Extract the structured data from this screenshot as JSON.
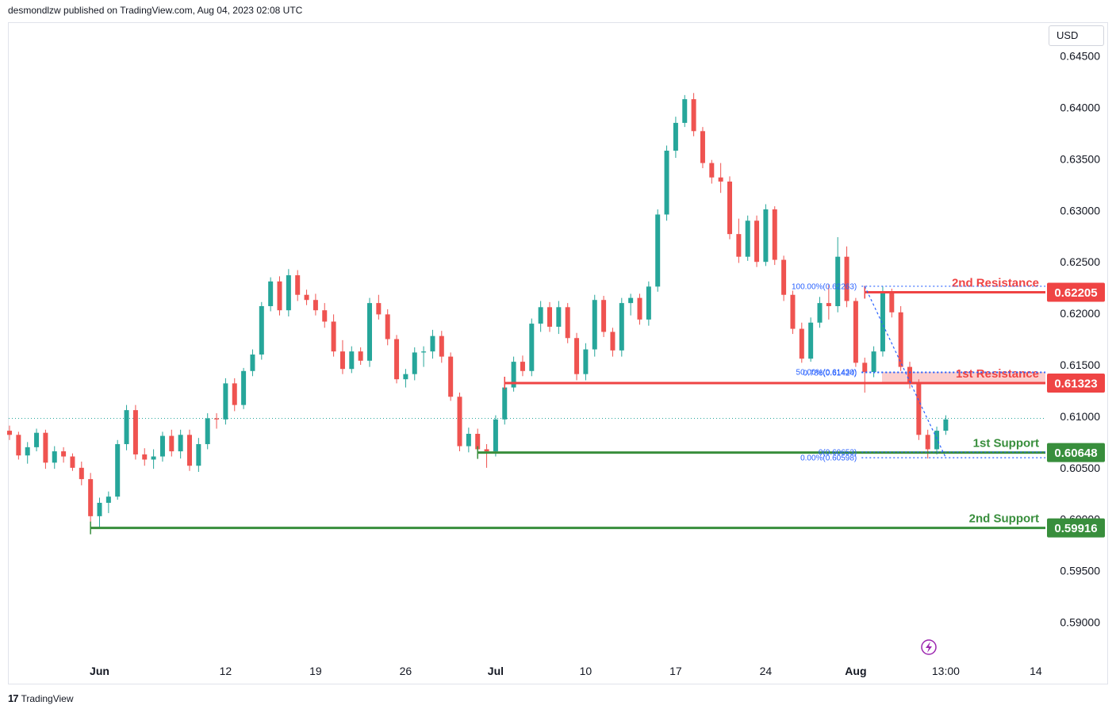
{
  "header": {
    "published": "desmondlzw published on TradingView.com, Aug 04, 2023 02:08 UTC"
  },
  "currency": "USD",
  "footer": {
    "brand": "TradingView",
    "logo_icon": "tradingview-logo-icon"
  },
  "colors": {
    "bull": "#26a69a",
    "bear": "#ef5350",
    "resistance": "#ef4444",
    "support": "#388e3c",
    "fib": "#2962ff"
  },
  "chart_data": {
    "type": "candlestick",
    "title": "",
    "xlabel": "",
    "ylabel": "",
    "ylim": [
      0.5865,
      0.6482
    ],
    "y_ticks": [
      "0.64500",
      "0.64000",
      "0.63500",
      "0.63000",
      "0.62500",
      "0.62000",
      "0.61500",
      "0.61000",
      "0.60500",
      "0.60000",
      "0.59500",
      "0.59000"
    ],
    "x_ticks": [
      {
        "label": "Jun",
        "i": 10,
        "bold": true
      },
      {
        "label": "12",
        "i": 24,
        "bold": false
      },
      {
        "label": "19",
        "i": 34,
        "bold": false
      },
      {
        "label": "26",
        "i": 44,
        "bold": false
      },
      {
        "label": "Jul",
        "i": 54,
        "bold": true
      },
      {
        "label": "10",
        "i": 64,
        "bold": false
      },
      {
        "label": "17",
        "i": 74,
        "bold": false
      },
      {
        "label": "24",
        "i": 84,
        "bold": false
      },
      {
        "label": "Aug",
        "i": 94,
        "bold": true
      },
      {
        "label": "13:00",
        "i": 104,
        "bold": false
      },
      {
        "label": "14",
        "i": 114,
        "bold": false
      }
    ],
    "candles": [
      [
        0.6086,
        0.6091,
        0.6077,
        0.6082
      ],
      [
        0.6082,
        0.6085,
        0.6058,
        0.6062
      ],
      [
        0.6062,
        0.6075,
        0.6054,
        0.607
      ],
      [
        0.607,
        0.6088,
        0.6066,
        0.6084
      ],
      [
        0.6084,
        0.6087,
        0.6049,
        0.6055
      ],
      [
        0.6055,
        0.6071,
        0.6049,
        0.6066
      ],
      [
        0.6066,
        0.607,
        0.6055,
        0.6061
      ],
      [
        0.6061,
        0.6064,
        0.6047,
        0.605
      ],
      [
        0.605,
        0.6056,
        0.6033,
        0.6039
      ],
      [
        0.6039,
        0.6045,
        0.5997,
        0.6003
      ],
      [
        0.6003,
        0.6021,
        0.5991,
        0.6016
      ],
      [
        0.6016,
        0.6027,
        0.6006,
        0.6022
      ],
      [
        0.6022,
        0.6077,
        0.6019,
        0.6073
      ],
      [
        0.6073,
        0.6111,
        0.6067,
        0.6106
      ],
      [
        0.6106,
        0.6111,
        0.6058,
        0.6063
      ],
      [
        0.6063,
        0.6069,
        0.6052,
        0.6058
      ],
      [
        0.6058,
        0.6068,
        0.6049,
        0.6061
      ],
      [
        0.6061,
        0.6085,
        0.6056,
        0.6081
      ],
      [
        0.6081,
        0.6087,
        0.6061,
        0.6066
      ],
      [
        0.6066,
        0.6087,
        0.6059,
        0.6082
      ],
      [
        0.6082,
        0.6087,
        0.6047,
        0.6052
      ],
      [
        0.6052,
        0.6079,
        0.6046,
        0.6073
      ],
      [
        0.6073,
        0.6103,
        0.6068,
        0.6098
      ],
      [
        0.6098,
        0.6103,
        0.6088,
        0.6097
      ],
      [
        0.6097,
        0.6137,
        0.6092,
        0.6132
      ],
      [
        0.6132,
        0.6137,
        0.6105,
        0.6111
      ],
      [
        0.6111,
        0.6147,
        0.6107,
        0.6144
      ],
      [
        0.6144,
        0.6165,
        0.6139,
        0.616
      ],
      [
        0.616,
        0.6211,
        0.6155,
        0.6207
      ],
      [
        0.6207,
        0.6235,
        0.6202,
        0.6231
      ],
      [
        0.6231,
        0.6236,
        0.6198,
        0.6203
      ],
      [
        0.6203,
        0.6243,
        0.6197,
        0.6237
      ],
      [
        0.6237,
        0.6242,
        0.6212,
        0.6218
      ],
      [
        0.6218,
        0.6223,
        0.6208,
        0.6213
      ],
      [
        0.6213,
        0.6219,
        0.6198,
        0.6203
      ],
      [
        0.6203,
        0.621,
        0.6186,
        0.6192
      ],
      [
        0.6192,
        0.6199,
        0.6158,
        0.6163
      ],
      [
        0.6163,
        0.6174,
        0.6141,
        0.6146
      ],
      [
        0.6146,
        0.6168,
        0.6142,
        0.6163
      ],
      [
        0.6163,
        0.6167,
        0.615,
        0.6154
      ],
      [
        0.6154,
        0.6215,
        0.6148,
        0.621
      ],
      [
        0.621,
        0.6218,
        0.6194,
        0.6199
      ],
      [
        0.6199,
        0.6204,
        0.6169,
        0.6175
      ],
      [
        0.6175,
        0.6179,
        0.6132,
        0.6136
      ],
      [
        0.6136,
        0.6146,
        0.6128,
        0.6141
      ],
      [
        0.6141,
        0.6167,
        0.6135,
        0.6162
      ],
      [
        0.6162,
        0.6168,
        0.6148,
        0.6163
      ],
      [
        0.6163,
        0.6184,
        0.6156,
        0.6178
      ],
      [
        0.6178,
        0.6183,
        0.6152,
        0.6158
      ],
      [
        0.6158,
        0.6162,
        0.6115,
        0.6119
      ],
      [
        0.6119,
        0.6123,
        0.6066,
        0.6071
      ],
      [
        0.6071,
        0.6089,
        0.6065,
        0.6083
      ],
      [
        0.6083,
        0.6088,
        0.6063,
        0.6068
      ],
      [
        0.6068,
        0.6073,
        0.605,
        0.6066
      ],
      [
        0.6066,
        0.6101,
        0.6061,
        0.6097
      ],
      [
        0.6097,
        0.6133,
        0.6092,
        0.6128
      ],
      [
        0.6128,
        0.6158,
        0.6124,
        0.6153
      ],
      [
        0.6153,
        0.6159,
        0.6139,
        0.6144
      ],
      [
        0.6144,
        0.6195,
        0.6139,
        0.619
      ],
      [
        0.619,
        0.6212,
        0.6182,
        0.6206
      ],
      [
        0.6206,
        0.6211,
        0.6182,
        0.6187
      ],
      [
        0.6187,
        0.6212,
        0.618,
        0.6206
      ],
      [
        0.6206,
        0.621,
        0.6171,
        0.6176
      ],
      [
        0.6176,
        0.6181,
        0.6135,
        0.6141
      ],
      [
        0.6141,
        0.6171,
        0.6135,
        0.6165
      ],
      [
        0.6165,
        0.6218,
        0.6158,
        0.6213
      ],
      [
        0.6213,
        0.6217,
        0.6177,
        0.6182
      ],
      [
        0.6182,
        0.6186,
        0.6158,
        0.6164
      ],
      [
        0.6164,
        0.6215,
        0.6158,
        0.621
      ],
      [
        0.621,
        0.6219,
        0.6198,
        0.6215
      ],
      [
        0.6215,
        0.6219,
        0.6189,
        0.6194
      ],
      [
        0.6194,
        0.6231,
        0.6188,
        0.6226
      ],
      [
        0.6226,
        0.6301,
        0.6221,
        0.6296
      ],
      [
        0.6296,
        0.6363,
        0.629,
        0.6358
      ],
      [
        0.6358,
        0.6391,
        0.6351,
        0.6385
      ],
      [
        0.6385,
        0.6412,
        0.6381,
        0.6408
      ],
      [
        0.6408,
        0.6414,
        0.6372,
        0.6377
      ],
      [
        0.6377,
        0.6381,
        0.6341,
        0.6346
      ],
      [
        0.6346,
        0.6349,
        0.6326,
        0.6332
      ],
      [
        0.6332,
        0.6346,
        0.6317,
        0.6328
      ],
      [
        0.6328,
        0.6333,
        0.6272,
        0.6277
      ],
      [
        0.6277,
        0.6292,
        0.6249,
        0.6255
      ],
      [
        0.6255,
        0.6295,
        0.6251,
        0.629
      ],
      [
        0.629,
        0.6295,
        0.6245,
        0.625
      ],
      [
        0.625,
        0.6306,
        0.6246,
        0.6301
      ],
      [
        0.6301,
        0.6304,
        0.6247,
        0.6252
      ],
      [
        0.6252,
        0.6256,
        0.6212,
        0.6218
      ],
      [
        0.6218,
        0.6222,
        0.618,
        0.6185
      ],
      [
        0.6185,
        0.6191,
        0.6152,
        0.6156
      ],
      [
        0.6156,
        0.6196,
        0.6153,
        0.6191
      ],
      [
        0.6191,
        0.6216,
        0.6186,
        0.621
      ],
      [
        0.621,
        0.6228,
        0.6194,
        0.6207
      ],
      [
        0.6207,
        0.6274,
        0.6201,
        0.6255
      ],
      [
        0.6255,
        0.6265,
        0.6206,
        0.6212
      ],
      [
        0.6212,
        0.6215,
        0.6148,
        0.6152
      ],
      [
        0.6152,
        0.6157,
        0.6123,
        0.6143
      ],
      [
        0.6143,
        0.6168,
        0.6138,
        0.6163
      ],
      [
        0.6163,
        0.6226,
        0.6158,
        0.622
      ],
      [
        0.622,
        0.6224,
        0.6196,
        0.6201
      ],
      [
        0.6201,
        0.6207,
        0.6144,
        0.6148
      ],
      [
        0.6148,
        0.6153,
        0.6127,
        0.6132
      ],
      [
        0.6132,
        0.6136,
        0.6077,
        0.6082
      ],
      [
        0.6082,
        0.6087,
        0.6059,
        0.6068
      ],
      [
        0.6068,
        0.609,
        0.6063,
        0.6086
      ],
      [
        0.6086,
        0.6101,
        0.6082,
        0.6097
      ]
    ],
    "last_price_line": 0.6098,
    "levels": [
      {
        "name": "2nd Resistance",
        "value": 0.62205,
        "label": "0.62205",
        "kind": "resistance",
        "from_i": 95
      },
      {
        "name": "1st Resistance",
        "value": 0.61323,
        "label": "0.61323",
        "kind": "resistance",
        "from_i": 55,
        "zone_top": 0.6143
      },
      {
        "name": "1st Support",
        "value": 0.60648,
        "label": "0.60648",
        "kind": "support",
        "from_i": 52
      },
      {
        "name": "2nd Support",
        "value": 0.59916,
        "label": "0.59916",
        "kind": "support",
        "from_i": 9
      }
    ],
    "fib_from_i": 95,
    "fib_to_i": 104,
    "fib_levels": [
      {
        "label": "100.00%(0.62263)",
        "value": 0.62263
      },
      {
        "label": "0.786(0.61424)",
        "value": 0.61424
      },
      {
        "label": "50.00%(0.61430)",
        "value": 0.6143
      },
      {
        "label": "0(0.60653)",
        "value": 0.60653
      },
      {
        "label": "0.00%(0.60598)",
        "value": 0.60598
      }
    ]
  }
}
